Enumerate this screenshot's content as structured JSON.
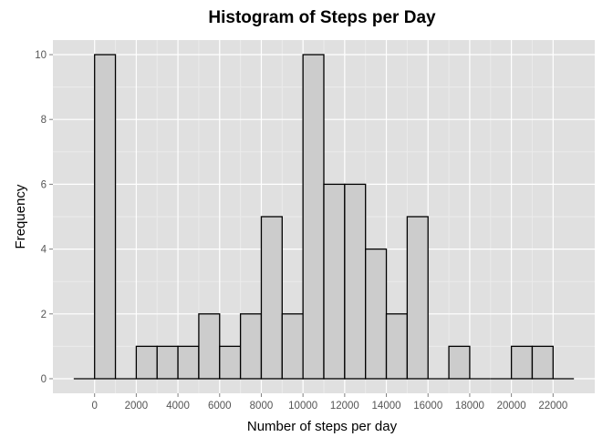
{
  "chart_data": {
    "type": "bar",
    "subtype": "histogram",
    "title": "Histogram of Steps per Day",
    "xlabel": "Number of steps per day",
    "ylabel": "Frequency",
    "bin_width": 1000,
    "bins": [
      {
        "start": -1000,
        "end": 0,
        "count": 0
      },
      {
        "start": 0,
        "end": 1000,
        "count": 10
      },
      {
        "start": 1000,
        "end": 2000,
        "count": 0
      },
      {
        "start": 2000,
        "end": 3000,
        "count": 1
      },
      {
        "start": 3000,
        "end": 4000,
        "count": 1
      },
      {
        "start": 4000,
        "end": 5000,
        "count": 1
      },
      {
        "start": 5000,
        "end": 6000,
        "count": 2
      },
      {
        "start": 6000,
        "end": 7000,
        "count": 1
      },
      {
        "start": 7000,
        "end": 8000,
        "count": 2
      },
      {
        "start": 8000,
        "end": 9000,
        "count": 5
      },
      {
        "start": 9000,
        "end": 10000,
        "count": 2
      },
      {
        "start": 10000,
        "end": 11000,
        "count": 10
      },
      {
        "start": 11000,
        "end": 12000,
        "count": 6
      },
      {
        "start": 12000,
        "end": 13000,
        "count": 6
      },
      {
        "start": 13000,
        "end": 14000,
        "count": 4
      },
      {
        "start": 14000,
        "end": 15000,
        "count": 2
      },
      {
        "start": 15000,
        "end": 16000,
        "count": 5
      },
      {
        "start": 16000,
        "end": 17000,
        "count": 0
      },
      {
        "start": 17000,
        "end": 18000,
        "count": 1
      },
      {
        "start": 18000,
        "end": 19000,
        "count": 0
      },
      {
        "start": 19000,
        "end": 20000,
        "count": 0
      },
      {
        "start": 20000,
        "end": 21000,
        "count": 1
      },
      {
        "start": 21000,
        "end": 22000,
        "count": 1
      },
      {
        "start": 22000,
        "end": 23000,
        "count": 0
      }
    ],
    "xlim": [
      -2000,
      24000
    ],
    "ylim": [
      -0.45,
      10.45
    ],
    "x_ticks": [
      0,
      2000,
      4000,
      6000,
      8000,
      10000,
      12000,
      14000,
      16000,
      18000,
      20000,
      22000
    ],
    "y_ticks": [
      0,
      2,
      4,
      6,
      8,
      10
    ],
    "grid": true,
    "colors": {
      "panel_background": "#e0e0e0",
      "grid_major": "#ffffff",
      "grid_minor": "#ebebeb",
      "bar_fill": "#cccccc",
      "bar_outline": "#000000",
      "tick_label": "#555555"
    }
  }
}
